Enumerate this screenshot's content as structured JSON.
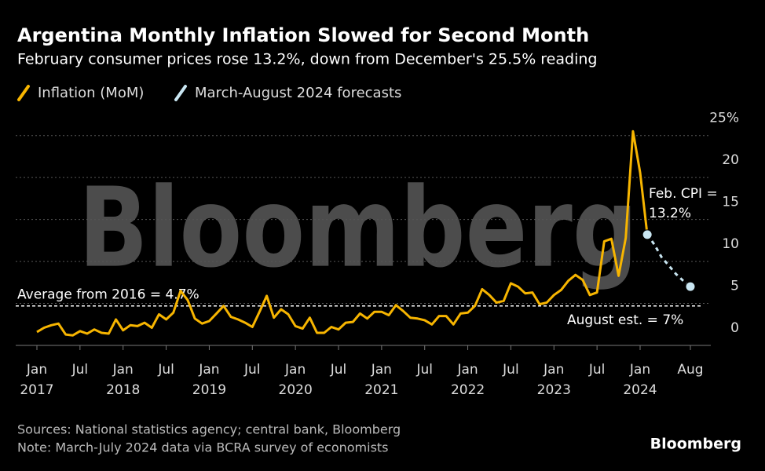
{
  "chart_data": {
    "type": "line",
    "title": "Argentina Monthly Inflation Slowed for Second Month",
    "subtitle": "February consumer prices rose 13.2%, down from December's 25.5% reading",
    "watermark": "Bloomberg",
    "x": [
      "2017-01",
      "2017-02",
      "2017-03",
      "2017-04",
      "2017-05",
      "2017-06",
      "2017-07",
      "2017-08",
      "2017-09",
      "2017-10",
      "2017-11",
      "2017-12",
      "2018-01",
      "2018-02",
      "2018-03",
      "2018-04",
      "2018-05",
      "2018-06",
      "2018-07",
      "2018-08",
      "2018-09",
      "2018-10",
      "2018-11",
      "2018-12",
      "2019-01",
      "2019-02",
      "2019-03",
      "2019-04",
      "2019-05",
      "2019-06",
      "2019-07",
      "2019-08",
      "2019-09",
      "2019-10",
      "2019-11",
      "2019-12",
      "2020-01",
      "2020-02",
      "2020-03",
      "2020-04",
      "2020-05",
      "2020-06",
      "2020-07",
      "2020-08",
      "2020-09",
      "2020-10",
      "2020-11",
      "2020-12",
      "2021-01",
      "2021-02",
      "2021-03",
      "2021-04",
      "2021-05",
      "2021-06",
      "2021-07",
      "2021-08",
      "2021-09",
      "2021-10",
      "2021-11",
      "2021-12",
      "2022-01",
      "2022-02",
      "2022-03",
      "2022-04",
      "2022-05",
      "2022-06",
      "2022-07",
      "2022-08",
      "2022-09",
      "2022-10",
      "2022-11",
      "2022-12",
      "2023-01",
      "2023-02",
      "2023-03",
      "2023-04",
      "2023-05",
      "2023-06",
      "2023-07",
      "2023-08",
      "2023-09",
      "2023-10",
      "2023-11",
      "2023-12",
      "2024-01",
      "2024-02",
      "2024-03",
      "2024-04",
      "2024-05",
      "2024-06",
      "2024-07",
      "2024-08"
    ],
    "series": [
      {
        "name": "Inflation (MoM)",
        "color": "#f7b500",
        "values": [
          1.6,
          2.1,
          2.4,
          2.6,
          1.3,
          1.2,
          1.7,
          1.4,
          1.9,
          1.5,
          1.4,
          3.1,
          1.8,
          2.4,
          2.3,
          2.7,
          2.1,
          3.7,
          3.1,
          3.9,
          6.5,
          5.4,
          3.2,
          2.6,
          2.9,
          3.8,
          4.7,
          3.4,
          3.1,
          2.7,
          2.2,
          4.0,
          5.9,
          3.3,
          4.3,
          3.7,
          2.3,
          2.0,
          3.3,
          1.5,
          1.5,
          2.2,
          1.9,
          2.7,
          2.8,
          3.8,
          3.2,
          4.0,
          4.0,
          3.6,
          4.8,
          4.1,
          3.3,
          3.2,
          3.0,
          2.5,
          3.5,
          3.5,
          2.5,
          3.8,
          3.9,
          4.7,
          6.7,
          6.0,
          5.1,
          5.3,
          7.4,
          7.0,
          6.2,
          6.3,
          4.9,
          5.1,
          6.0,
          6.6,
          7.7,
          8.4,
          7.8,
          6.0,
          6.3,
          12.4,
          12.7,
          8.3,
          12.8,
          25.5,
          20.6,
          13.2,
          null,
          null,
          null,
          null,
          null,
          null
        ]
      },
      {
        "name": "March-August 2024 forecasts",
        "color": "#c9e6f2",
        "dashed": true,
        "values": [
          null,
          null,
          null,
          null,
          null,
          null,
          null,
          null,
          null,
          null,
          null,
          null,
          null,
          null,
          null,
          null,
          null,
          null,
          null,
          null,
          null,
          null,
          null,
          null,
          null,
          null,
          null,
          null,
          null,
          null,
          null,
          null,
          null,
          null,
          null,
          null,
          null,
          null,
          null,
          null,
          null,
          null,
          null,
          null,
          null,
          null,
          null,
          null,
          null,
          null,
          null,
          null,
          null,
          null,
          null,
          null,
          null,
          null,
          null,
          null,
          null,
          null,
          null,
          null,
          null,
          null,
          null,
          null,
          null,
          null,
          null,
          null,
          null,
          null,
          null,
          null,
          null,
          null,
          null,
          null,
          null,
          null,
          null,
          null,
          null,
          13.2,
          12.0,
          10.5,
          9.5,
          8.5,
          7.7,
          7.0
        ]
      }
    ],
    "xlim": [
      "2017-01",
      "2024-08"
    ],
    "xticks": [
      {
        "value": "2017-01",
        "label": "Jan",
        "year": "2017"
      },
      {
        "value": "2017-07",
        "label": "Jul"
      },
      {
        "value": "2018-01",
        "label": "Jan",
        "year": "2018"
      },
      {
        "value": "2018-07",
        "label": "Jul"
      },
      {
        "value": "2019-01",
        "label": "Jan",
        "year": "2019"
      },
      {
        "value": "2019-07",
        "label": "Jul"
      },
      {
        "value": "2020-01",
        "label": "Jan",
        "year": "2020"
      },
      {
        "value": "2020-07",
        "label": "Jul"
      },
      {
        "value": "2021-01",
        "label": "Jan",
        "year": "2021"
      },
      {
        "value": "2021-07",
        "label": "Jul"
      },
      {
        "value": "2022-01",
        "label": "Jan",
        "year": "2022"
      },
      {
        "value": "2022-07",
        "label": "Jul"
      },
      {
        "value": "2023-01",
        "label": "Jan",
        "year": "2023"
      },
      {
        "value": "2023-07",
        "label": "Jul"
      },
      {
        "value": "2024-01",
        "label": "Jan",
        "year": "2024"
      },
      {
        "value": "2024-08",
        "label": "Aug"
      }
    ],
    "ylim": [
      0,
      26
    ],
    "yticks": [
      0,
      5,
      10,
      15,
      20,
      {
        "value": 25,
        "label": "25%"
      }
    ],
    "grid": true,
    "average": {
      "value": 4.7,
      "label": "Average from 2016 = 4.7%"
    },
    "annotations": [
      "Feb. CPI = 13.2%",
      "August est. = 7%"
    ],
    "source": "Sources: National statistics agency; central bank, Bloomberg",
    "note": "Note: March-July 2024 data via BCRA survey of economists",
    "brand": "Bloomberg"
  }
}
